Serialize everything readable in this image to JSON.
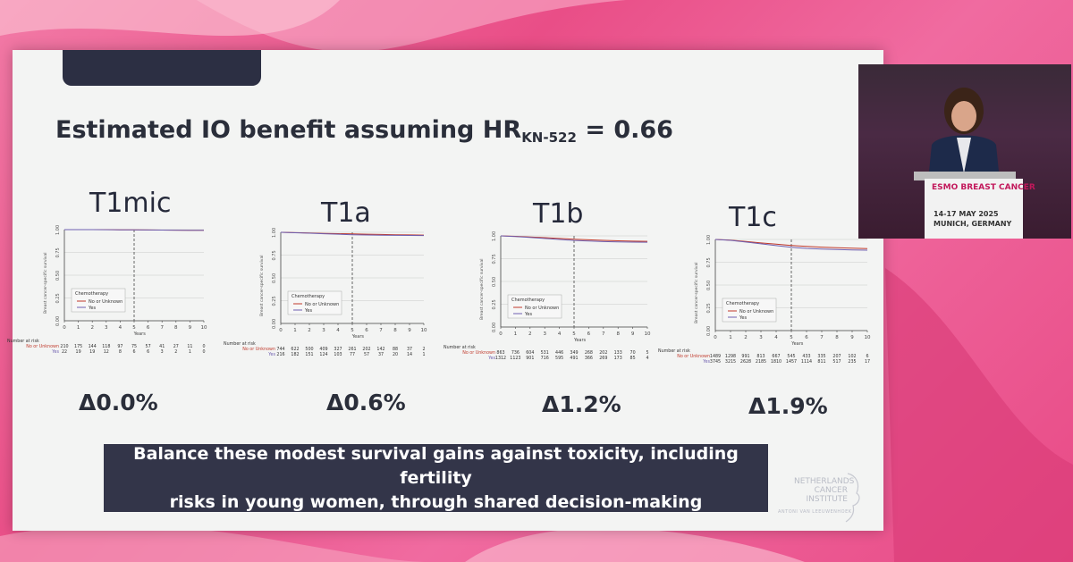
{
  "slide": {
    "title_main": "Estimated IO benefit assuming HR",
    "title_sub": "KN-522",
    "title_value": "= 0.66",
    "banner_line1": "Balance these modest survival gains against toxicity, including fertility",
    "banner_line2": "risks in young women, through shared decision-making",
    "logo_line1": "NETHERLANDS",
    "logo_line2": "CANCER",
    "logo_line3": "INSTITUTE",
    "logo_sub": "ANTONI VAN LEEUWENHOEK"
  },
  "stage": {
    "sign_line1": "ESMO BREAST CANCER",
    "sign_line2": "14-17 MAY 2025",
    "sign_line3": "MUNICH, GERMANY"
  },
  "panels": [
    {
      "title": "T1mic",
      "delta": "Δ0.0%",
      "ylabel": "Breast cancer-specific survival",
      "xlabel": "Years",
      "legend_title": "Chemotherapy",
      "legend_no": "No or Unknown",
      "legend_yes": "Yes",
      "risk_title": "Number at risk",
      "risk_no_label": "No or Unknown",
      "risk_yes_label": "Yes",
      "risk_no": [
        "210",
        "175",
        "144",
        "118",
        "97",
        "75",
        "57",
        "41",
        "27",
        "11",
        "0"
      ],
      "risk_yes": [
        "22",
        "19",
        "19",
        "12",
        "8",
        "6",
        "6",
        "3",
        "2",
        "1",
        "0"
      ],
      "yticks": [
        "0.00",
        "0.25",
        "0.50",
        "0.75",
        "1.00"
      ],
      "xticks": [
        "0",
        "1",
        "2",
        "3",
        "4",
        "5",
        "6",
        "7",
        "8",
        "9",
        "10"
      ],
      "curve_no": [
        [
          0,
          1
        ],
        [
          1,
          1
        ],
        [
          2,
          1
        ],
        [
          3,
          1
        ],
        [
          4,
          0.998
        ],
        [
          5,
          0.997
        ],
        [
          6,
          0.996
        ],
        [
          7,
          0.995
        ],
        [
          8,
          0.994
        ],
        [
          9,
          0.993
        ],
        [
          10,
          0.992
        ]
      ],
      "curve_yes": [
        [
          0,
          1
        ],
        [
          1,
          1
        ],
        [
          2,
          1
        ],
        [
          3,
          0.999
        ],
        [
          4,
          0.998
        ],
        [
          5,
          0.997
        ],
        [
          6,
          0.996
        ],
        [
          7,
          0.995
        ],
        [
          8,
          0.994
        ],
        [
          9,
          0.993
        ],
        [
          10,
          0.992
        ]
      ]
    },
    {
      "title": "T1a",
      "delta": "Δ0.6%",
      "ylabel": "Breast cancer-specific survival",
      "xlabel": "Years",
      "legend_title": "Chemotherapy",
      "legend_no": "No or Unknown",
      "legend_yes": "Yes",
      "risk_title": "Number at risk",
      "risk_no_label": "No or Unknown",
      "risk_yes_label": "Yes",
      "risk_no": [
        "744",
        "622",
        "500",
        "409",
        "327",
        "261",
        "202",
        "142",
        "88",
        "37",
        "2"
      ],
      "risk_yes": [
        "216",
        "182",
        "151",
        "124",
        "103",
        "77",
        "57",
        "37",
        "20",
        "14",
        "1"
      ],
      "yticks": [
        "0.00",
        "0.25",
        "0.50",
        "0.75",
        "1.00"
      ],
      "xticks": [
        "0",
        "1",
        "2",
        "3",
        "4",
        "5",
        "6",
        "7",
        "8",
        "9",
        "10"
      ],
      "curve_no": [
        [
          0,
          1
        ],
        [
          1,
          0.996
        ],
        [
          2,
          0.992
        ],
        [
          3,
          0.988
        ],
        [
          4,
          0.985
        ],
        [
          5,
          0.982
        ],
        [
          6,
          0.979
        ],
        [
          7,
          0.976
        ],
        [
          8,
          0.974
        ],
        [
          9,
          0.972
        ],
        [
          10,
          0.97
        ]
      ],
      "curve_yes": [
        [
          0,
          1
        ],
        [
          1,
          0.995
        ],
        [
          2,
          0.99
        ],
        [
          3,
          0.984
        ],
        [
          4,
          0.979
        ],
        [
          5,
          0.974
        ],
        [
          6,
          0.971
        ],
        [
          7,
          0.969
        ],
        [
          8,
          0.967
        ],
        [
          9,
          0.966
        ],
        [
          10,
          0.965
        ]
      ]
    },
    {
      "title": "T1b",
      "delta": "Δ1.2%",
      "ylabel": "Breast cancer-specific survival",
      "xlabel": "Years",
      "legend_title": "Chemotherapy",
      "legend_no": "No or Unknown",
      "legend_yes": "Yes",
      "risk_title": "Number at risk",
      "risk_no_label": "No or Unknown",
      "risk_yes_label": "Yes",
      "risk_no": [
        "863",
        "736",
        "604",
        "531",
        "446",
        "349",
        "268",
        "202",
        "133",
        "70",
        "5"
      ],
      "risk_yes": [
        "1312",
        "1123",
        "901",
        "716",
        "595",
        "491",
        "366",
        "269",
        "173",
        "85",
        "4"
      ],
      "yticks": [
        "0.00",
        "0.25",
        "0.50",
        "0.75",
        "1.00"
      ],
      "xticks": [
        "0",
        "1",
        "2",
        "3",
        "4",
        "5",
        "6",
        "7",
        "8",
        "9",
        "10"
      ],
      "curve_no": [
        [
          0,
          1
        ],
        [
          1,
          0.995
        ],
        [
          2,
          0.988
        ],
        [
          3,
          0.98
        ],
        [
          4,
          0.972
        ],
        [
          5,
          0.964
        ],
        [
          6,
          0.957
        ],
        [
          7,
          0.951
        ],
        [
          8,
          0.946
        ],
        [
          9,
          0.942
        ],
        [
          10,
          0.94
        ]
      ],
      "curve_yes": [
        [
          0,
          1
        ],
        [
          1,
          0.993
        ],
        [
          2,
          0.983
        ],
        [
          3,
          0.972
        ],
        [
          4,
          0.961
        ],
        [
          5,
          0.95
        ],
        [
          6,
          0.943
        ],
        [
          7,
          0.937
        ],
        [
          8,
          0.933
        ],
        [
          9,
          0.931
        ],
        [
          10,
          0.93
        ]
      ]
    },
    {
      "title": "T1c",
      "delta": "Δ1.9%",
      "ylabel": "Breast cancer-specific survival",
      "xlabel": "Years",
      "legend_title": "Chemotherapy",
      "legend_no": "No or Unknown",
      "legend_yes": "Yes",
      "risk_title": "Number at risk",
      "risk_no_label": "No or Unknown",
      "risk_yes_label": "Yes",
      "risk_no": [
        "1489",
        "1298",
        "991",
        "813",
        "667",
        "545",
        "433",
        "335",
        "207",
        "102",
        "6"
      ],
      "risk_yes": [
        "3745",
        "3215",
        "2628",
        "2185",
        "1810",
        "1457",
        "1114",
        "811",
        "517",
        "235",
        "17"
      ],
      "yticks": [
        "0.00",
        "0.25",
        "0.50",
        "0.75",
        "1.00"
      ],
      "xticks": [
        "0",
        "1",
        "2",
        "3",
        "4",
        "5",
        "6",
        "7",
        "8",
        "9",
        "10"
      ],
      "curve_no": [
        [
          0,
          1
        ],
        [
          1,
          0.992
        ],
        [
          2,
          0.978
        ],
        [
          3,
          0.962
        ],
        [
          4,
          0.948
        ],
        [
          5,
          0.934
        ],
        [
          6,
          0.924
        ],
        [
          7,
          0.916
        ],
        [
          8,
          0.91
        ],
        [
          9,
          0.905
        ],
        [
          10,
          0.9
        ]
      ],
      "curve_yes": [
        [
          0,
          1
        ],
        [
          1,
          0.99
        ],
        [
          2,
          0.972
        ],
        [
          3,
          0.952
        ],
        [
          4,
          0.932
        ],
        [
          5,
          0.914
        ],
        [
          6,
          0.902
        ],
        [
          7,
          0.894
        ],
        [
          8,
          0.889
        ],
        [
          9,
          0.885
        ],
        [
          10,
          0.882
        ]
      ]
    }
  ],
  "colors": {
    "curve_no": "#c0392b",
    "curve_yes": "#6f5fb0",
    "axis": "#444444",
    "banner_bg": "#333549"
  }
}
